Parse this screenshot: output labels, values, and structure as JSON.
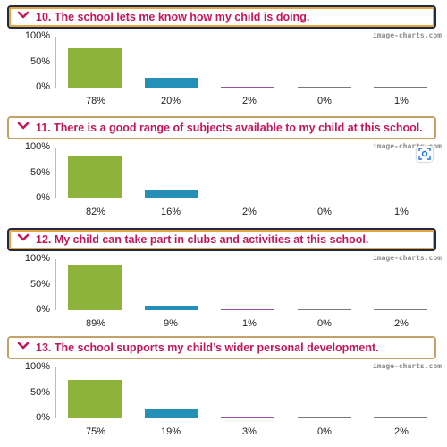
{
  "watermark": "image-charts.com",
  "colors": {
    "green": "#8db33a",
    "blue": "#2490b8",
    "purple": "#9b4fa8",
    "gray": "#7a7a7a",
    "title": "#c2185b"
  },
  "chart_data": [
    {
      "type": "bar",
      "title": "10. The school lets me know how my child is doing.",
      "categories": [
        "78%",
        "20%",
        "2%",
        "0%",
        "1%"
      ],
      "values": [
        78,
        20,
        2,
        0,
        1
      ],
      "yticks": [
        "100%",
        "50%",
        "0%"
      ],
      "ylim": [
        0,
        100
      ]
    },
    {
      "type": "bar",
      "title": "11. There is a good range of subjects available to my child at this school.",
      "categories": [
        "82%",
        "16%",
        "2%",
        "0%",
        "1%"
      ],
      "values": [
        82,
        16,
        2,
        0,
        1
      ],
      "yticks": [
        "100%",
        "50%",
        "0%"
      ],
      "ylim": [
        0,
        100
      ]
    },
    {
      "type": "bar",
      "title": "12. My child can take part in clubs and activities at this school.",
      "categories": [
        "89%",
        "9%",
        "1%",
        "0%",
        "2%"
      ],
      "values": [
        89,
        9,
        1,
        0,
        2
      ],
      "yticks": [
        "100%",
        "50%",
        "0%"
      ],
      "ylim": [
        0,
        100
      ]
    },
    {
      "type": "bar",
      "title": "13. The school supports my child’s wider personal development.",
      "categories": [
        "75%",
        "19%",
        "3%",
        "0%",
        "2%"
      ],
      "values": [
        75,
        19,
        3,
        0,
        2
      ],
      "yticks": [
        "100%",
        "50%",
        "0%"
      ],
      "ylim": [
        0,
        100
      ]
    }
  ]
}
